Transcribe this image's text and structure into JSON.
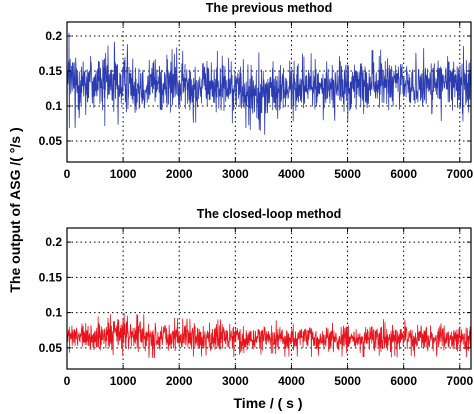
{
  "ylabel": "The output of ASG /( °/s )",
  "xlabel": "Time  / ( s )",
  "chart_data": [
    {
      "type": "line",
      "title": "The previous method",
      "xlim": [
        0,
        7200
      ],
      "ylim": [
        0.02,
        0.22
      ],
      "xticks": [
        0,
        1000,
        2000,
        3000,
        4000,
        5000,
        6000,
        7000
      ],
      "xticklabels": [
        "0",
        "1000",
        "2000",
        "3000",
        "4000",
        "5000",
        "6000",
        "7000"
      ],
      "yticks": [
        0.05,
        0.1,
        0.15,
        0.2
      ],
      "yticklabels": [
        "0.05",
        "0.1",
        "0.15",
        "0.2"
      ],
      "grid": true,
      "series": [
        {
          "color": "#2b3bb0",
          "x": [
            0,
            500,
            1000,
            1500,
            2000,
            2500,
            3000,
            3500,
            4000,
            4500,
            5000,
            5500,
            6000,
            6500,
            7000,
            7200
          ],
          "y_max": [
            0.205,
            0.2,
            0.188,
            0.19,
            0.183,
            0.178,
            0.18,
            0.176,
            0.174,
            0.176,
            0.178,
            0.18,
            0.182,
            0.183,
            0.186,
            0.185
          ],
          "y_min": [
            0.068,
            0.07,
            0.074,
            0.076,
            0.074,
            0.078,
            0.075,
            0.058,
            0.078,
            0.08,
            0.078,
            0.082,
            0.08,
            0.079,
            0.078,
            0.078
          ]
        }
      ]
    },
    {
      "type": "line",
      "title": "The closed-loop method",
      "xlim": [
        0,
        7200
      ],
      "ylim": [
        0.02,
        0.22
      ],
      "xticks": [
        0,
        1000,
        2000,
        3000,
        4000,
        5000,
        6000,
        7000
      ],
      "xticklabels": [
        "0",
        "1000",
        "2000",
        "3000",
        "4000",
        "5000",
        "6000",
        "7000"
      ],
      "yticks": [
        0.05,
        0.1,
        0.15,
        0.2
      ],
      "yticklabels": [
        "0.05",
        "0.1",
        "0.15",
        "0.2"
      ],
      "grid": true,
      "series": [
        {
          "color": "#e8141c",
          "x": [
            0,
            500,
            1000,
            1500,
            2000,
            2500,
            3000,
            3500,
            4000,
            4500,
            5000,
            5500,
            6000,
            6500,
            7000,
            7200
          ],
          "y_max": [
            0.092,
            0.093,
            0.108,
            0.094,
            0.092,
            0.09,
            0.091,
            0.09,
            0.088,
            0.089,
            0.09,
            0.091,
            0.09,
            0.089,
            0.09,
            0.09
          ],
          "y_min": [
            0.038,
            0.036,
            0.035,
            0.036,
            0.037,
            0.038,
            0.037,
            0.036,
            0.038,
            0.037,
            0.038,
            0.036,
            0.037,
            0.038,
            0.037,
            0.037
          ]
        }
      ]
    }
  ]
}
